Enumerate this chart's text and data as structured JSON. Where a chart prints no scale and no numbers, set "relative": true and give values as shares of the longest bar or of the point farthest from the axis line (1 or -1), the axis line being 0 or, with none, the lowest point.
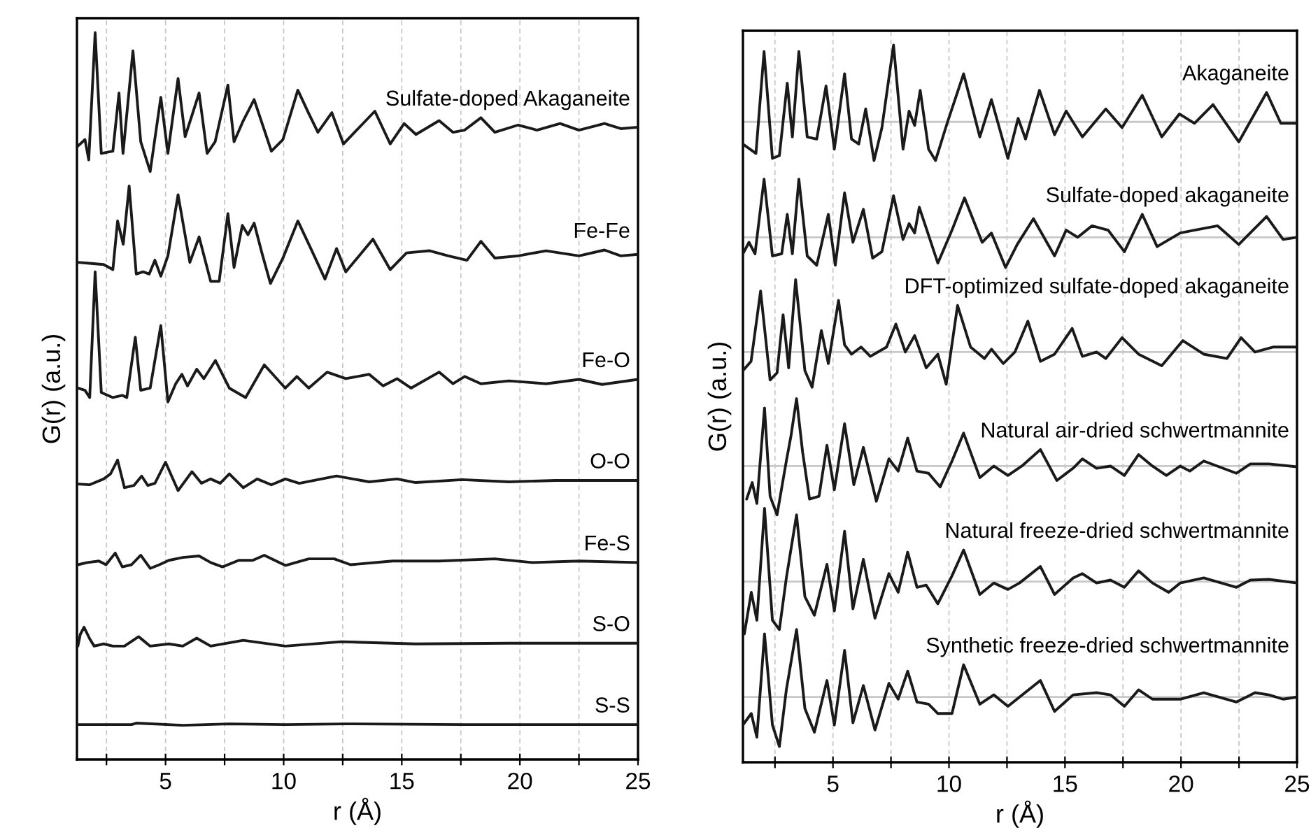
{
  "chart_data": [
    {
      "type": "line",
      "xlabel": "r (Å)",
      "ylabel": "G(r) (a.u.)",
      "relative": true,
      "xlim": [
        1.25,
        25
      ],
      "xticks": [
        {
          "value": 2.5,
          "label": null
        },
        5,
        {
          "value": 7.5,
          "label": null
        },
        10,
        {
          "value": 12.5,
          "label": null
        },
        15,
        {
          "value": 17.5,
          "label": null
        },
        20,
        {
          "value": 22.5,
          "label": null
        },
        25
      ],
      "grid": "x",
      "tick_labels": "x",
      "legend": false,
      "series": [
        {
          "name": "Sulfate-doped Akaganeite",
          "color": "#1a1a1a",
          "x": [
            1.29,
            1.59,
            1.75,
            2.02,
            2.28,
            2.77,
            3.03,
            3.2,
            3.62,
            3.95,
            4.35,
            4.8,
            5.1,
            5.53,
            5.83,
            6.42,
            6.76,
            7.1,
            7.64,
            7.9,
            8.29,
            8.75,
            9.48,
            9.97,
            10.6,
            11.06,
            11.45,
            12.04,
            12.53,
            13.86,
            14.51,
            15.1,
            15.6,
            16.58,
            17.17,
            17.66,
            18.35,
            18.94,
            19.93,
            20.72,
            21.7,
            22.5,
            23.58,
            24.27,
            25.0
          ],
          "values": [
            0.844,
            0.853,
            0.825,
            1.0,
            0.834,
            0.837,
            0.917,
            0.834,
            0.975,
            0.85,
            0.809,
            0.911,
            0.834,
            0.937,
            0.857,
            0.917,
            0.834,
            0.85,
            0.928,
            0.85,
            0.879,
            0.908,
            0.837,
            0.853,
            0.921,
            0.889,
            0.863,
            0.89,
            0.847,
            0.892,
            0.847,
            0.875,
            0.86,
            0.879,
            0.863,
            0.866,
            0.883,
            0.863,
            0.873,
            0.866,
            0.875,
            0.866,
            0.875,
            0.868,
            0.87
          ]
        },
        {
          "name": "Fe-Fe",
          "color": "#1a1a1a",
          "x": [
            1.29,
            1.69,
            2.38,
            2.77,
            2.97,
            3.21,
            3.46,
            3.76,
            4.05,
            4.31,
            4.55,
            4.8,
            5.1,
            5.53,
            6.03,
            6.42,
            6.91,
            7.27,
            7.64,
            7.9,
            8.25,
            8.49,
            8.75,
            9.08,
            9.44,
            9.97,
            10.6,
            11.15,
            11.75,
            12.24,
            12.63,
            13.78,
            14.51,
            15.2,
            16.18,
            16.97,
            17.76,
            18.35,
            18.94,
            19.93,
            21.11,
            22.5,
            23.58,
            24.27,
            25.0
          ],
          "values": [
            0.684,
            0.683,
            0.681,
            0.674,
            0.741,
            0.709,
            0.789,
            0.668,
            0.671,
            0.668,
            0.687,
            0.665,
            0.693,
            0.777,
            0.684,
            0.719,
            0.658,
            0.658,
            0.751,
            0.677,
            0.735,
            0.722,
            0.738,
            0.697,
            0.655,
            0.69,
            0.741,
            0.703,
            0.661,
            0.703,
            0.671,
            0.716,
            0.674,
            0.697,
            0.7,
            0.693,
            0.687,
            0.713,
            0.69,
            0.693,
            0.7,
            0.693,
            0.701,
            0.693,
            0.695
          ]
        },
        {
          "name": "Fe-O",
          "color": "#1a1a1a",
          "x": [
            1.29,
            1.59,
            1.79,
            2.02,
            2.28,
            2.77,
            3.17,
            3.36,
            3.72,
            3.95,
            4.35,
            4.8,
            5.1,
            5.43,
            5.69,
            5.93,
            6.32,
            6.62,
            7.11,
            7.7,
            8.39,
            9.18,
            10.07,
            10.56,
            11.06,
            11.84,
            12.63,
            13.62,
            14.21,
            14.8,
            15.39,
            16.58,
            17.17,
            17.66,
            18.35,
            19.54,
            21.11,
            22.5,
            23.48,
            25.0
          ],
          "values": [
            0.511,
            0.508,
            0.498,
            0.671,
            0.505,
            0.498,
            0.501,
            0.498,
            0.581,
            0.508,
            0.511,
            0.597,
            0.492,
            0.517,
            0.53,
            0.514,
            0.537,
            0.524,
            0.549,
            0.511,
            0.498,
            0.543,
            0.511,
            0.527,
            0.511,
            0.533,
            0.524,
            0.53,
            0.514,
            0.524,
            0.511,
            0.533,
            0.517,
            0.527,
            0.517,
            0.521,
            0.517,
            0.523,
            0.516,
            0.523
          ]
        },
        {
          "name": "O-O",
          "color": "#1a1a1a",
          "x": [
            1.29,
            1.78,
            2.38,
            2.67,
            2.97,
            3.26,
            3.66,
            3.99,
            4.25,
            4.55,
            5.0,
            5.53,
            6.12,
            6.52,
            6.91,
            7.31,
            7.7,
            8.29,
            8.88,
            9.48,
            10.07,
            10.66,
            12.24,
            13.62,
            14.8,
            15.59,
            17.56,
            19.54,
            21.51,
            25.0
          ],
          "values": [
            0.379,
            0.378,
            0.386,
            0.393,
            0.412,
            0.374,
            0.377,
            0.39,
            0.377,
            0.38,
            0.409,
            0.37,
            0.396,
            0.38,
            0.386,
            0.38,
            0.393,
            0.374,
            0.386,
            0.378,
            0.386,
            0.38,
            0.39,
            0.382,
            0.386,
            0.381,
            0.385,
            0.382,
            0.384,
            0.384
          ]
        },
        {
          "name": "Fe-S",
          "color": "#1a1a1a",
          "x": [
            1.29,
            1.69,
            2.18,
            2.48,
            2.87,
            3.17,
            3.56,
            3.95,
            4.35,
            4.74,
            5.14,
            5.73,
            6.42,
            6.91,
            7.41,
            8.1,
            8.69,
            9.18,
            10.07,
            11.06,
            12.14,
            12.83,
            14.61,
            16.58,
            18.94,
            20.52,
            22.5,
            25.0
          ],
          "values": [
            0.268,
            0.271,
            0.273,
            0.268,
            0.284,
            0.265,
            0.268,
            0.281,
            0.263,
            0.268,
            0.274,
            0.278,
            0.28,
            0.271,
            0.265,
            0.274,
            0.274,
            0.281,
            0.267,
            0.276,
            0.276,
            0.268,
            0.273,
            0.273,
            0.276,
            0.271,
            0.273,
            0.271
          ]
        },
        {
          "name": "S-O",
          "color": "#1a1a1a",
          "x": [
            1.29,
            1.39,
            1.55,
            1.79,
            1.98,
            2.38,
            2.77,
            3.26,
            3.86,
            4.35,
            5.14,
            5.73,
            6.32,
            6.91,
            8.29,
            10.07,
            12.44,
            15.59,
            19.54,
            25.0
          ],
          "values": [
            0.156,
            0.172,
            0.182,
            0.166,
            0.156,
            0.159,
            0.156,
            0.156,
            0.169,
            0.156,
            0.159,
            0.156,
            0.167,
            0.156,
            0.164,
            0.156,
            0.162,
            0.159,
            0.16,
            0.16
          ]
        },
        {
          "name": "S-S",
          "color": "#1a1a1a",
          "x": [
            1.29,
            3.56,
            3.76,
            5.73,
            7.7,
            10.07,
            12.63,
            17.56,
            21.51,
            25.0
          ],
          "values": [
            0.048,
            0.048,
            0.05,
            0.047,
            0.049,
            0.048,
            0.049,
            0.048,
            0.048,
            0.048
          ]
        }
      ]
    },
    {
      "type": "line",
      "xlabel": "r (Å)",
      "ylabel": "G(r) (a.u.)",
      "relative": true,
      "xlim": [
        1.12,
        25
      ],
      "xticks": [
        {
          "value": 2.5,
          "label": null
        },
        5,
        {
          "value": 7.5,
          "label": null
        },
        10,
        {
          "value": 12.5,
          "label": null
        },
        15,
        {
          "value": 17.5,
          "label": null
        },
        20,
        {
          "value": 22.5,
          "label": null
        },
        25
      ],
      "grid": "x",
      "tick_labels": "x",
      "legend": false,
      "ref_lines": [
        {
          "axis": "y",
          "value": 0.893,
          "color": "#c8c8c8"
        },
        {
          "axis": "y",
          "value": 0.732,
          "color": "#c8c8c8"
        },
        {
          "axis": "y",
          "value": 0.572,
          "color": "#c8c8c8"
        },
        {
          "axis": "y",
          "value": 0.413,
          "color": "#c8c8c8"
        },
        {
          "axis": "y",
          "value": 0.252,
          "color": "#c8c8c8"
        },
        {
          "axis": "y",
          "value": 0.091,
          "color": "#c8c8c8"
        }
      ],
      "series": [
        {
          "name": "Akaganeite",
          "color": "#1a1a1a",
          "x": [
            1.12,
            1.68,
            2.03,
            2.39,
            2.69,
            3.03,
            3.25,
            3.53,
            3.89,
            4.3,
            4.7,
            5.06,
            5.5,
            5.8,
            6.11,
            6.41,
            6.77,
            7.11,
            7.61,
            8.02,
            8.28,
            8.52,
            8.76,
            9.12,
            9.42,
            9.92,
            10.63,
            11.33,
            11.83,
            12.54,
            12.98,
            13.3,
            13.9,
            14.55,
            15.05,
            15.75,
            16.76,
            17.46,
            18.33,
            19.17,
            19.93,
            20.58,
            21.38,
            22.49,
            23.69,
            24.3,
            25.0
          ],
          "values": [
            0.862,
            0.849,
            0.991,
            0.842,
            0.846,
            0.947,
            0.872,
            0.991,
            0.872,
            0.869,
            0.943,
            0.855,
            0.96,
            0.869,
            0.862,
            0.911,
            0.839,
            0.885,
            1.0,
            0.855,
            0.908,
            0.888,
            0.937,
            0.855,
            0.839,
            0.891,
            0.96,
            0.872,
            0.924,
            0.842,
            0.898,
            0.869,
            0.937,
            0.875,
            0.908,
            0.872,
            0.911,
            0.885,
            0.93,
            0.872,
            0.904,
            0.891,
            0.917,
            0.865,
            0.934,
            0.891,
            0.891
          ]
        },
        {
          "name": "Sulfate-doped akaganeite",
          "color": "#1a1a1a",
          "x": [
            1.12,
            1.38,
            1.64,
            2.03,
            2.39,
            2.79,
            3.03,
            3.25,
            3.53,
            3.89,
            4.3,
            4.8,
            5.1,
            5.5,
            5.86,
            6.31,
            6.71,
            7.11,
            7.61,
            8.02,
            8.28,
            8.52,
            8.72,
            9.52,
            10.13,
            10.67,
            11.43,
            11.83,
            12.44,
            12.94,
            13.64,
            14.55,
            15.05,
            15.55,
            16.16,
            16.86,
            17.56,
            18.33,
            18.97,
            19.97,
            20.58,
            21.58,
            22.49,
            23.69,
            24.4,
            25.0
          ],
          "values": [
            0.709,
            0.725,
            0.709,
            0.813,
            0.706,
            0.709,
            0.764,
            0.709,
            0.813,
            0.706,
            0.693,
            0.764,
            0.693,
            0.794,
            0.725,
            0.771,
            0.703,
            0.712,
            0.79,
            0.729,
            0.751,
            0.738,
            0.774,
            0.696,
            0.742,
            0.787,
            0.725,
            0.738,
            0.69,
            0.722,
            0.758,
            0.706,
            0.742,
            0.732,
            0.748,
            0.742,
            0.712,
            0.764,
            0.719,
            0.738,
            0.742,
            0.748,
            0.722,
            0.761,
            0.729,
            0.732
          ]
        },
        {
          "name": "DFT-optimized sulfate-doped akaganeite",
          "color": "#1a1a1a",
          "x": [
            1.12,
            1.47,
            1.88,
            2.29,
            2.59,
            2.85,
            3.09,
            3.39,
            3.79,
            4.1,
            4.5,
            4.8,
            5.24,
            5.5,
            5.8,
            6.21,
            6.61,
            7.31,
            7.71,
            8.12,
            8.52,
            9.02,
            9.52,
            9.88,
            10.37,
            10.93,
            11.53,
            11.83,
            12.34,
            12.84,
            13.4,
            13.94,
            14.55,
            15.31,
            15.75,
            16.36,
            16.76,
            17.46,
            18.17,
            19.17,
            20.08,
            20.98,
            21.98,
            22.59,
            23.19,
            23.99,
            25.0
          ],
          "values": [
            0.546,
            0.559,
            0.657,
            0.533,
            0.543,
            0.624,
            0.55,
            0.673,
            0.546,
            0.523,
            0.602,
            0.556,
            0.644,
            0.582,
            0.569,
            0.579,
            0.566,
            0.579,
            0.611,
            0.572,
            0.595,
            0.55,
            0.569,
            0.527,
            0.637,
            0.579,
            0.563,
            0.576,
            0.556,
            0.572,
            0.615,
            0.559,
            0.569,
            0.605,
            0.566,
            0.572,
            0.563,
            0.592,
            0.569,
            0.553,
            0.588,
            0.569,
            0.563,
            0.592,
            0.572,
            0.579,
            0.579
          ]
        },
        {
          "name": "Natural air-dried schwertmannite",
          "color": "#1a1a1a",
          "x": [
            1.28,
            1.52,
            1.72,
            2.05,
            2.29,
            2.59,
            2.99,
            3.19,
            3.43,
            3.69,
            3.99,
            4.4,
            4.74,
            5.06,
            5.5,
            5.9,
            6.31,
            6.87,
            7.41,
            7.81,
            8.22,
            8.62,
            9.12,
            9.62,
            10.13,
            10.63,
            11.33,
            11.93,
            12.54,
            13.14,
            13.94,
            14.65,
            15.35,
            15.75,
            16.36,
            16.96,
            17.56,
            18.17,
            18.77,
            19.37,
            19.97,
            20.38,
            20.98,
            22.39,
            22.99,
            23.79,
            25.0
          ],
          "values": [
            0.367,
            0.39,
            0.361,
            0.494,
            0.371,
            0.345,
            0.42,
            0.455,
            0.507,
            0.433,
            0.367,
            0.371,
            0.442,
            0.38,
            0.472,
            0.387,
            0.439,
            0.364,
            0.423,
            0.406,
            0.452,
            0.406,
            0.403,
            0.384,
            0.42,
            0.459,
            0.397,
            0.413,
            0.4,
            0.413,
            0.436,
            0.393,
            0.41,
            0.423,
            0.41,
            0.413,
            0.4,
            0.429,
            0.413,
            0.4,
            0.413,
            0.406,
            0.42,
            0.403,
            0.416,
            0.416,
            0.412
          ]
        },
        {
          "name": "Natural freeze-dried schwertmannite",
          "color": "#1a1a1a",
          "x": [
            1.18,
            1.48,
            1.72,
            2.05,
            2.39,
            2.69,
            2.99,
            3.43,
            3.79,
            4.2,
            4.74,
            5.06,
            5.5,
            5.86,
            6.31,
            6.81,
            7.41,
            7.81,
            8.22,
            8.62,
            9.02,
            9.52,
            10.13,
            10.63,
            11.33,
            11.93,
            12.54,
            13.04,
            13.94,
            14.55,
            15.35,
            15.75,
            16.36,
            16.96,
            17.56,
            18.17,
            18.77,
            19.47,
            19.97,
            20.98,
            22.39,
            22.99,
            23.79,
            25.0
          ],
          "values": [
            0.179,
            0.237,
            0.198,
            0.354,
            0.198,
            0.185,
            0.257,
            0.345,
            0.231,
            0.205,
            0.276,
            0.211,
            0.322,
            0.214,
            0.283,
            0.201,
            0.263,
            0.237,
            0.293,
            0.244,
            0.247,
            0.221,
            0.26,
            0.296,
            0.234,
            0.25,
            0.241,
            0.25,
            0.273,
            0.234,
            0.257,
            0.263,
            0.25,
            0.254,
            0.244,
            0.267,
            0.25,
            0.237,
            0.25,
            0.257,
            0.244,
            0.254,
            0.255,
            0.25
          ]
        },
        {
          "name": "Synthetic freeze-dried schwertmannite",
          "color": "#1a1a1a",
          "x": [
            1.12,
            1.48,
            1.72,
            2.05,
            2.39,
            2.69,
            2.99,
            3.43,
            3.79,
            4.2,
            4.74,
            5.06,
            5.5,
            5.86,
            6.31,
            6.81,
            7.41,
            7.81,
            8.22,
            8.62,
            9.12,
            9.52,
            10.13,
            10.63,
            11.33,
            11.93,
            12.54,
            13.04,
            13.94,
            14.55,
            15.35,
            16.36,
            16.96,
            17.56,
            18.17,
            18.77,
            19.97,
            20.98,
            22.39,
            23.19,
            23.79,
            24.4,
            25.0
          ],
          "values": [
            0.052,
            0.068,
            0.035,
            0.179,
            0.052,
            0.022,
            0.101,
            0.185,
            0.075,
            0.042,
            0.114,
            0.052,
            0.156,
            0.055,
            0.107,
            0.045,
            0.11,
            0.088,
            0.127,
            0.084,
            0.081,
            0.068,
            0.068,
            0.136,
            0.081,
            0.094,
            0.078,
            0.091,
            0.114,
            0.071,
            0.094,
            0.097,
            0.094,
            0.078,
            0.101,
            0.088,
            0.088,
            0.097,
            0.084,
            0.097,
            0.094,
            0.088,
            0.091
          ]
        }
      ]
    }
  ]
}
